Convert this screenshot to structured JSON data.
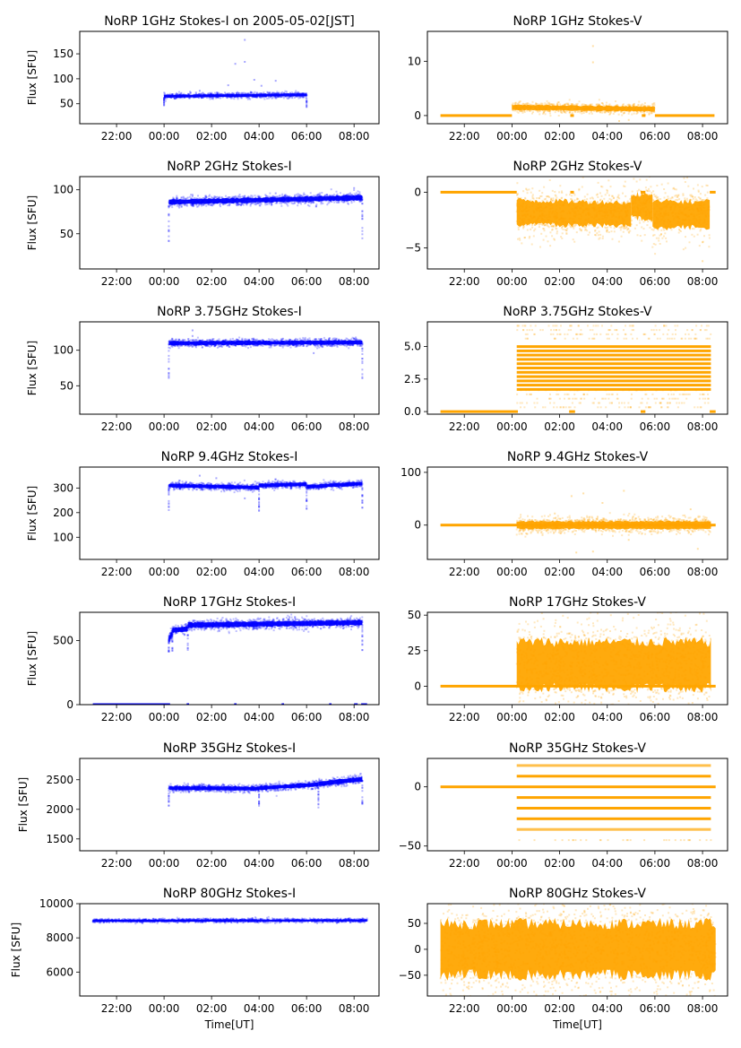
{
  "figure": {
    "xlabel": "Time[UT]",
    "ylabel": "Flux [SFU]",
    "colors": {
      "stokes_i": "#0000ff",
      "stokes_v": "#ffa500"
    }
  },
  "chart_data": [
    {
      "type": "scatter",
      "id": "i1",
      "title": "NoRP 1GHz Stokes-I on 2005-05-02[JST]",
      "ylabel": "Flux [SFU]",
      "xlabel": "",
      "color": "#0000ff",
      "ylim": [
        10,
        195
      ],
      "yticks": [
        50,
        100,
        150
      ],
      "xticks": [
        "22:00",
        "00:00",
        "02:00",
        "04:00",
        "06:00",
        "08:00"
      ],
      "xlim_hours": [
        20.45,
        33.05
      ],
      "segments": [
        {
          "start": 24.0,
          "end": 30.0,
          "level_start": 65,
          "level_end": 68,
          "spread": 3,
          "dips_to": 42
        }
      ],
      "outliers": [
        [
          25.5,
          76
        ],
        [
          27.0,
          130
        ],
        [
          27.4,
          178
        ],
        [
          27.4,
          134
        ],
        [
          27.8,
          98
        ],
        [
          28.1,
          86
        ],
        [
          28.7,
          96
        ],
        [
          26.7,
          87
        ]
      ]
    },
    {
      "type": "scatter",
      "id": "v1",
      "title": "NoRP 1GHz Stokes-V",
      "ylabel": "",
      "xlabel": "",
      "color": "#ffa500",
      "ylim": [
        -1.5,
        15.5
      ],
      "yticks": [
        0,
        10
      ],
      "xticks": [
        "22:00",
        "00:00",
        "02:00",
        "04:00",
        "06:00",
        "08:00"
      ],
      "xlim_hours": [
        20.45,
        33.05
      ],
      "baseline": [
        [
          21.0,
          24.0,
          0
        ],
        [
          26.45,
          26.6,
          0
        ],
        [
          29.45,
          29.6,
          0
        ],
        [
          30.0,
          32.5,
          0
        ]
      ],
      "segments": [
        {
          "start": 24.0,
          "end": 30.0,
          "level_start": 1.5,
          "level_end": 1.2,
          "spread": 0.5
        }
      ],
      "outliers": [
        [
          27.4,
          12.8
        ],
        [
          27.4,
          9.8
        ],
        [
          26.3,
          2.2
        ],
        [
          28.5,
          -1.0
        ],
        [
          28.9,
          -0.8
        ]
      ]
    },
    {
      "type": "scatter",
      "id": "i2",
      "title": "NoRP 2GHz Stokes-I",
      "ylabel": "Flux [SFU]",
      "xlabel": "",
      "color": "#0000ff",
      "ylim": [
        10,
        115
      ],
      "yticks": [
        50,
        100
      ],
      "xticks": [
        "22:00",
        "00:00",
        "02:00",
        "04:00",
        "06:00",
        "08:00"
      ],
      "xlim_hours": [
        20.45,
        33.05
      ],
      "segments": [
        {
          "start": 24.2,
          "end": 32.35,
          "level_start": 86,
          "level_end": 91,
          "spread": 3,
          "dips_to": 41
        }
      ],
      "outliers": [
        [
          25.2,
          93
        ],
        [
          27.4,
          93
        ],
        [
          28.3,
          93
        ],
        [
          28.7,
          96
        ],
        [
          30.4,
          81
        ],
        [
          32.0,
          102
        ]
      ]
    },
    {
      "type": "scatter",
      "id": "v2",
      "title": "NoRP 2GHz Stokes-V",
      "ylabel": "",
      "xlabel": "",
      "color": "#ffa500",
      "ylim": [
        -6.9,
        1.4
      ],
      "yticks": [
        0,
        -5
      ],
      "xticks": [
        "22:00",
        "00:00",
        "02:00",
        "04:00",
        "06:00",
        "08:00"
      ],
      "xlim_hours": [
        20.45,
        33.05
      ],
      "baseline": [
        [
          21.0,
          24.2,
          0
        ],
        [
          26.45,
          26.6,
          0
        ],
        [
          29.4,
          29.6,
          0
        ],
        [
          32.3,
          32.55,
          0
        ]
      ],
      "segments": [
        {
          "start": 24.2,
          "end": 29.0,
          "level_start": -1.8,
          "level_end": -2.0,
          "spread": 1.2
        },
        {
          "start": 29.0,
          "end": 29.9,
          "level_start": -1.2,
          "level_end": -1.4,
          "spread": 1.2
        },
        {
          "start": 29.9,
          "end": 32.3,
          "level_start": -2.0,
          "level_end": -2.0,
          "spread": 1.3
        }
      ],
      "outliers": [
        [
          32.0,
          -6.2
        ],
        [
          32.0,
          -4.5
        ],
        [
          24.6,
          0.3
        ]
      ]
    },
    {
      "type": "scatter",
      "id": "i3",
      "title": "NoRP 3.75GHz Stokes-I",
      "ylabel": "Flux [SFU]",
      "xlabel": "",
      "color": "#0000ff",
      "ylim": [
        10,
        140
      ],
      "yticks": [
        50,
        100
      ],
      "xticks": [
        "22:00",
        "00:00",
        "02:00",
        "04:00",
        "06:00",
        "08:00"
      ],
      "xlim_hours": [
        20.45,
        33.05
      ],
      "segments": [
        {
          "start": 24.2,
          "end": 32.35,
          "level_start": 110,
          "level_end": 111,
          "spread": 3,
          "dips_to": 60
        }
      ],
      "outliers": [
        [
          25.2,
          120
        ],
        [
          25.2,
          128
        ],
        [
          27.4,
          114
        ],
        [
          30.3,
          96
        ]
      ]
    },
    {
      "type": "scatter",
      "id": "v3",
      "title": "NoRP 3.75GHz Stokes-V",
      "ylabel": "",
      "xlabel": "",
      "color": "#ffa500",
      "ylim": [
        -0.2,
        6.9
      ],
      "yticks": [
        0.0,
        2.5,
        5.0
      ],
      "ytick_labels": [
        "0.0",
        "2.5",
        "5.0"
      ],
      "xticks": [
        "22:00",
        "00:00",
        "02:00",
        "04:00",
        "06:00",
        "08:00"
      ],
      "xlim_hours": [
        20.45,
        33.05
      ],
      "baseline": [
        [
          21.0,
          24.25,
          0
        ],
        [
          26.4,
          26.65,
          0
        ],
        [
          29.4,
          29.6,
          0
        ],
        [
          32.3,
          32.55,
          0
        ]
      ],
      "quantized": {
        "start": 24.2,
        "end": 32.35,
        "step": 0.33,
        "min": 1.7,
        "max": 5.3,
        "sparse_min": 0.33,
        "sparse_max": 6.6
      }
    },
    {
      "type": "scatter",
      "id": "i4",
      "title": "NoRP 9.4GHz Stokes-I",
      "ylabel": "Flux [SFU]",
      "xlabel": "",
      "color": "#0000ff",
      "ylim": [
        10,
        385
      ],
      "yticks": [
        100,
        200,
        300
      ],
      "xticks": [
        "22:00",
        "00:00",
        "02:00",
        "04:00",
        "06:00",
        "08:00"
      ],
      "xlim_hours": [
        20.45,
        33.05
      ],
      "segments": [
        {
          "start": 24.2,
          "end": 28.0,
          "level_start": 310,
          "level_end": 302,
          "spread": 8,
          "dips_to": 205
        },
        {
          "start": 28.0,
          "end": 30.0,
          "level_start": 310,
          "level_end": 316,
          "spread": 8
        },
        {
          "start": 30.0,
          "end": 32.35,
          "level_start": 305,
          "level_end": 318,
          "spread": 8,
          "dips_to": 215
        }
      ],
      "outliers": [
        [
          25.5,
          350
        ],
        [
          26.2,
          340
        ],
        [
          27.4,
          258
        ],
        [
          28.7,
          335
        ]
      ]
    },
    {
      "type": "scatter",
      "id": "v4",
      "title": "NoRP 9.4GHz Stokes-V",
      "ylabel": "",
      "xlabel": "",
      "color": "#ffa500",
      "ylim": [
        -65,
        110
      ],
      "yticks": [
        0,
        100
      ],
      "xticks": [
        "22:00",
        "00:00",
        "02:00",
        "04:00",
        "06:00",
        "08:00"
      ],
      "xlim_hours": [
        20.45,
        33.05
      ],
      "baseline": [
        [
          21.0,
          32.55,
          0
        ]
      ],
      "segments": [
        {
          "start": 24.2,
          "end": 32.35,
          "level_start": 0,
          "level_end": 0,
          "spread": 8
        }
      ],
      "outliers": [
        [
          26.5,
          55
        ],
        [
          27.0,
          60
        ],
        [
          27.8,
          42
        ],
        [
          28.7,
          65
        ],
        [
          26.7,
          -52
        ],
        [
          27.4,
          -50
        ],
        [
          28.9,
          -28
        ],
        [
          31.8,
          -45
        ],
        [
          25.8,
          22
        ],
        [
          31.5,
          30
        ]
      ]
    },
    {
      "type": "scatter",
      "id": "i5",
      "title": "NoRP 17GHz Stokes-I",
      "ylabel": "Flux [SFU]",
      "xlabel": "",
      "color": "#0000ff",
      "ylim": [
        0,
        720
      ],
      "yticks": [
        0,
        500
      ],
      "xticks": [
        "22:00",
        "00:00",
        "02:00",
        "04:00",
        "06:00",
        "08:00"
      ],
      "xlim_hours": [
        20.45,
        33.05
      ],
      "baseline": [
        [
          21.0,
          24.25,
          0
        ],
        [
          24.95,
          25.05,
          0
        ],
        [
          26.95,
          27.05,
          0
        ],
        [
          28.95,
          29.05,
          0
        ],
        [
          30.95,
          31.05,
          0
        ],
        [
          32.0,
          32.15,
          0
        ],
        [
          32.3,
          32.55,
          0
        ]
      ],
      "segments": [
        {
          "start": 24.2,
          "end": 24.35,
          "level_start": 510,
          "level_end": 560,
          "spread": 20,
          "dips_to": 410
        },
        {
          "start": 24.35,
          "end": 25.0,
          "level_start": 580,
          "level_end": 590,
          "spread": 20
        },
        {
          "start": 25.0,
          "end": 32.35,
          "level_start": 620,
          "level_end": 640,
          "spread": 22,
          "dips_to": 410
        }
      ],
      "outliers": []
    },
    {
      "type": "scatter",
      "id": "v5",
      "title": "NoRP 17GHz Stokes-V",
      "ylabel": "",
      "xlabel": "",
      "color": "#ffa500",
      "ylim": [
        -13,
        52
      ],
      "yticks": [
        0,
        25,
        50
      ],
      "xticks": [
        "22:00",
        "00:00",
        "02:00",
        "04:00",
        "06:00",
        "08:00"
      ],
      "xlim_hours": [
        20.45,
        33.05
      ],
      "baseline": [
        [
          21.0,
          32.55,
          0
        ]
      ],
      "segments": [
        {
          "start": 24.2,
          "end": 32.35,
          "level_start": 15,
          "level_end": 15,
          "spread": 18
        }
      ],
      "outliers": []
    },
    {
      "type": "scatter",
      "id": "i6",
      "title": "NoRP 35GHz Stokes-I",
      "ylabel": "Flux [SFU]",
      "xlabel": "",
      "color": "#0000ff",
      "ylim": [
        1300,
        2860
      ],
      "yticks": [
        1500,
        2000,
        2500
      ],
      "xticks": [
        "22:00",
        "00:00",
        "02:00",
        "04:00",
        "06:00",
        "08:00"
      ],
      "xlim_hours": [
        20.45,
        33.05
      ],
      "segments": [
        {
          "start": 24.2,
          "end": 28.0,
          "level_start": 2360,
          "level_end": 2350,
          "spread": 35,
          "dips_to": 2040
        },
        {
          "start": 28.0,
          "end": 30.5,
          "level_start": 2360,
          "level_end": 2420,
          "spread": 35
        },
        {
          "start": 30.5,
          "end": 32.35,
          "level_start": 2430,
          "level_end": 2510,
          "spread": 40,
          "dips_to": 2000
        }
      ],
      "outliers": []
    },
    {
      "type": "scatter",
      "id": "v6",
      "title": "NoRP 35GHz Stokes-V",
      "ylabel": "",
      "xlabel": "",
      "color": "#ffa500",
      "ylim": [
        -54,
        24
      ],
      "yticks": [
        0,
        -50
      ],
      "xticks": [
        "22:00",
        "00:00",
        "02:00",
        "04:00",
        "06:00",
        "08:00"
      ],
      "xlim_hours": [
        20.45,
        33.05
      ],
      "baseline": [
        [
          21.0,
          32.55,
          0
        ]
      ],
      "levels": {
        "start": 24.2,
        "end": 32.35,
        "values": [
          18,
          9,
          -9,
          -18,
          -27,
          -36
        ],
        "sparse": [
          -45
        ]
      }
    },
    {
      "type": "scatter",
      "id": "i7",
      "title": "NoRP 80GHz Stokes-I",
      "ylabel": "Flux [SFU]",
      "xlabel": "Time[UT]",
      "color": "#0000ff",
      "ylim": [
        4600,
        10000
      ],
      "yticks": [
        6000,
        8000,
        10000
      ],
      "xticks": [
        "22:00",
        "00:00",
        "02:00",
        "04:00",
        "06:00",
        "08:00"
      ],
      "xlim_hours": [
        20.45,
        33.05
      ],
      "segments": [
        {
          "start": 21.0,
          "end": 32.55,
          "level_start": 9000,
          "level_end": 9020,
          "spread": 60
        }
      ],
      "outliers": []
    },
    {
      "type": "scatter",
      "id": "v7",
      "title": "NoRP 80GHz Stokes-V",
      "ylabel": "",
      "xlabel": "Time[UT]",
      "color": "#ffa500",
      "ylim": [
        -90,
        88
      ],
      "yticks": [
        -50,
        0,
        50
      ],
      "xticks": [
        "22:00",
        "00:00",
        "02:00",
        "04:00",
        "06:00",
        "08:00"
      ],
      "xlim_hours": [
        20.45,
        33.05
      ],
      "segments": [
        {
          "start": 21.0,
          "end": 32.55,
          "level_start": 0,
          "level_end": 0,
          "spread": 55
        }
      ],
      "outliers": []
    }
  ]
}
